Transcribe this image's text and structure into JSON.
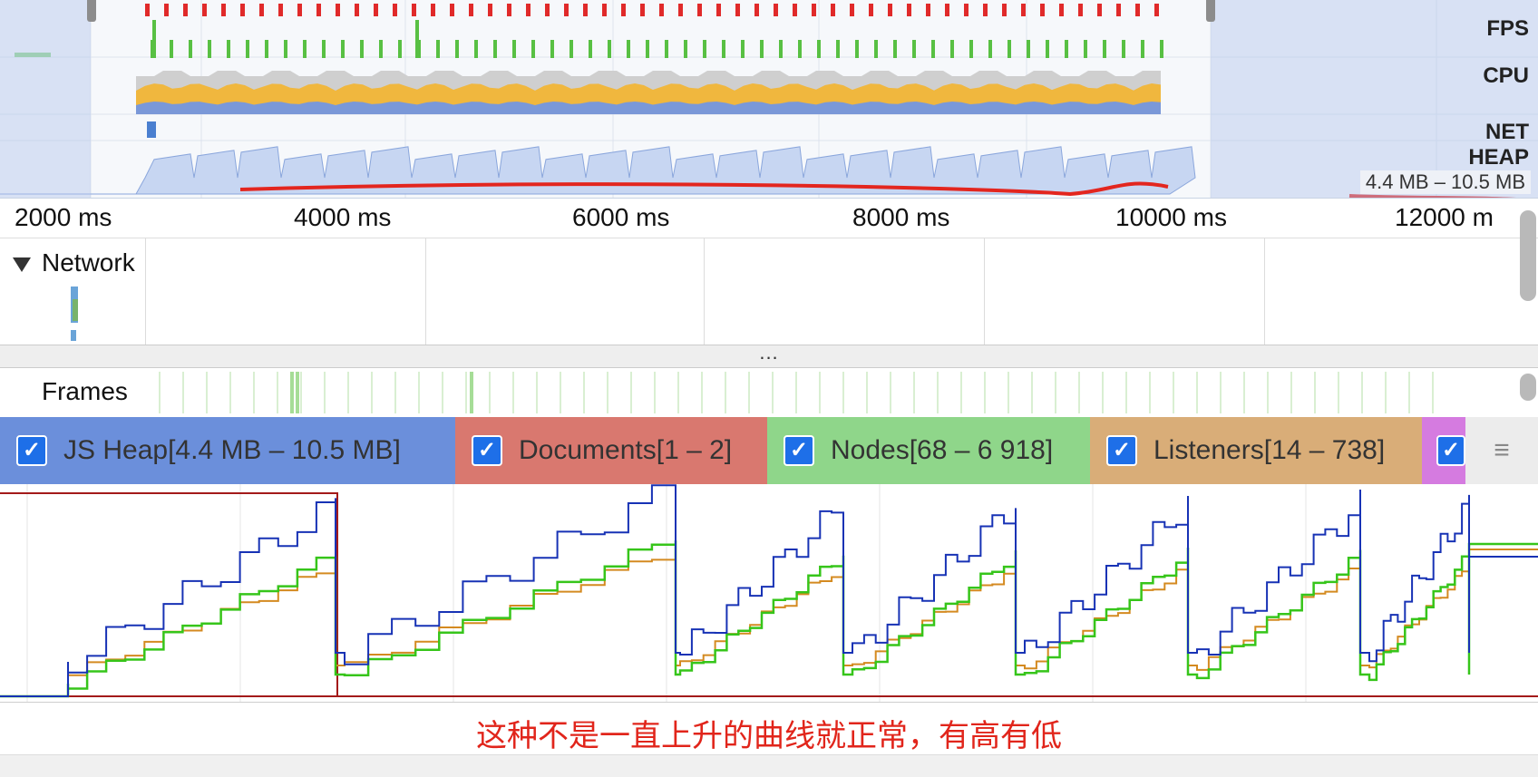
{
  "overview": {
    "labels": {
      "fps": "FPS",
      "cpu": "CPU",
      "net": "NET",
      "heap": "HEAP"
    },
    "heap_range": "4.4 MB – 10.5 MB"
  },
  "ruler": {
    "ticks": [
      "2000 ms",
      "4000 ms",
      "6000 ms",
      "8000 ms",
      "10000 ms",
      "12000 m"
    ]
  },
  "network": {
    "label": "Network"
  },
  "splitter": {
    "label": "..."
  },
  "frames": {
    "label": "Frames"
  },
  "counters": {
    "js_heap": "JS Heap[4.4 MB – 10.5 MB]",
    "documents": "Documents[1 – 2]",
    "nodes": "Nodes[68 – 6 918]",
    "listeners": "Listeners[14 – 738]",
    "colors": {
      "js_heap": "#6b8fdb",
      "documents": "#d9786f",
      "nodes": "#8fd68a",
      "listeners": "#d9ad78",
      "gpu": "#d57be0"
    }
  },
  "menu": {
    "icon": "hamburger-icon",
    "glyph": "≡"
  },
  "caption": "这种不是一直上升的曲线就正常，有高有低"
}
